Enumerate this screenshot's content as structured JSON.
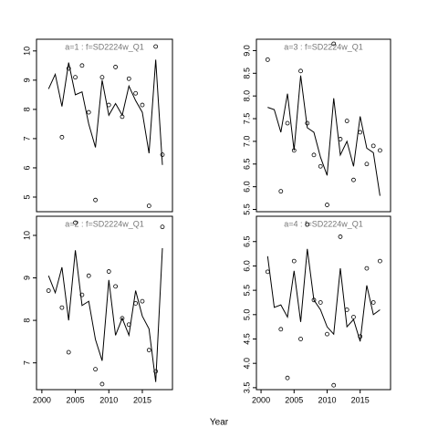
{
  "xlabel": "Year",
  "chart_data": [
    {
      "type": "line",
      "title": "a=1  :  f=SD2224w_Q1",
      "x": [
        2001,
        2002,
        2003,
        2004,
        2005,
        2006,
        2007,
        2008,
        2009,
        2010,
        2011,
        2012,
        2013,
        2014,
        2015,
        2016,
        2017,
        2018
      ],
      "xlim": [
        1999.2,
        2019.5
      ],
      "ylim": [
        4.5,
        10.4
      ],
      "yticks": [
        5,
        6,
        7,
        8,
        9,
        10
      ],
      "series": [
        {
          "style": "line",
          "color": "#000000",
          "values": [
            8.7,
            9.2,
            8.1,
            9.6,
            8.5,
            8.6,
            7.5,
            6.7,
            9.0,
            7.8,
            8.2,
            7.8,
            8.8,
            8.3,
            7.9,
            6.5,
            9.7,
            6.1
          ]
        },
        {
          "style": "points",
          "color": "#000000",
          "values": [
            null,
            null,
            7.05,
            9.4,
            9.1,
            9.5,
            7.9,
            4.9,
            9.1,
            8.15,
            9.45,
            7.75,
            9.05,
            8.55,
            8.15,
            4.7,
            10.15,
            6.45
          ]
        }
      ]
    },
    {
      "type": "line",
      "title": "a=3  :  f=SD2224w_Q1",
      "x": [
        2001,
        2002,
        2003,
        2004,
        2005,
        2006,
        2007,
        2008,
        2009,
        2010,
        2011,
        2012,
        2013,
        2014,
        2015,
        2016,
        2017,
        2018
      ],
      "xlim": [
        1999.3,
        2019.6
      ],
      "ylim": [
        5.45,
        9.25
      ],
      "yticks": [
        {
          "value": 5.5,
          "label": "5.5"
        },
        {
          "value": 6,
          "label": "6.0"
        },
        6.5,
        {
          "value": 7,
          "label": "7.0"
        },
        7.5,
        {
          "value": 8,
          "label": "8.0"
        },
        8.5,
        {
          "value": 9,
          "label": "9.0"
        }
      ],
      "series": [
        {
          "style": "line",
          "color": "#000000",
          "values": [
            7.75,
            7.7,
            7.2,
            8.05,
            6.8,
            8.45,
            7.3,
            7.2,
            6.65,
            6.25,
            7.95,
            6.7,
            7.0,
            6.45,
            7.55,
            6.85,
            6.75,
            5.8
          ]
        },
        {
          "style": "points",
          "color": "#000000",
          "values": [
            8.8,
            null,
            5.9,
            7.4,
            6.8,
            8.55,
            7.4,
            6.7,
            6.45,
            5.6,
            9.15,
            7.05,
            7.45,
            6.15,
            7.2,
            6.5,
            6.9,
            6.8
          ]
        }
      ]
    },
    {
      "type": "line",
      "title": "a=2  :  f=SD2224w_Q1",
      "x": [
        2001,
        2002,
        2003,
        2004,
        2005,
        2006,
        2007,
        2008,
        2009,
        2010,
        2011,
        2012,
        2013,
        2014,
        2015,
        2016,
        2017,
        2018
      ],
      "xlim": [
        1999.2,
        2019.5
      ],
      "xticks": [
        2000,
        2005,
        2010,
        2015
      ],
      "ylim": [
        6.37,
        10.45
      ],
      "yticks": [
        7,
        8,
        9,
        10
      ],
      "series": [
        {
          "style": "line",
          "color": "#000000",
          "values": [
            9.05,
            8.65,
            9.25,
            8.0,
            9.65,
            8.35,
            8.45,
            7.55,
            7.05,
            8.95,
            7.65,
            8.05,
            7.65,
            8.7,
            8.1,
            7.8,
            6.55,
            9.7
          ]
        },
        {
          "style": "points",
          "color": "#000000",
          "values": [
            8.7,
            null,
            8.3,
            7.25,
            10.3,
            8.6,
            9.05,
            6.85,
            6.5,
            9.15,
            8.8,
            8.05,
            7.9,
            8.4,
            8.45,
            7.3,
            6.8,
            10.2
          ]
        }
      ]
    },
    {
      "type": "line",
      "title": "a=4  :  f=SD2224w_Q1",
      "x": [
        2001,
        2002,
        2003,
        2004,
        2005,
        2006,
        2007,
        2008,
        2009,
        2010,
        2011,
        2012,
        2013,
        2014,
        2015,
        2016,
        2017,
        2018
      ],
      "xlim": [
        1999.3,
        2019.6
      ],
      "xticks": [
        2000,
        2005,
        2010,
        2015
      ],
      "ylim": [
        3.46,
        7.02
      ],
      "yticks": [
        3.5,
        {
          "value": 4,
          "label": "4.0"
        },
        4.5,
        {
          "value": 5,
          "label": "5.0"
        },
        5.5,
        {
          "value": 6,
          "label": "6.0"
        },
        6.5
      ],
      "series": [
        {
          "style": "line",
          "color": "#000000",
          "values": [
            6.2,
            5.15,
            5.2,
            4.95,
            5.9,
            4.85,
            6.35,
            5.3,
            5.1,
            4.75,
            4.6,
            5.95,
            4.75,
            4.9,
            4.45,
            5.6,
            5.0,
            5.1
          ]
        },
        {
          "style": "points",
          "color": "#000000",
          "values": [
            5.88,
            null,
            4.7,
            3.7,
            6.1,
            4.5,
            6.85,
            5.3,
            5.25,
            4.6,
            3.55,
            6.6,
            5.1,
            4.95,
            4.55,
            5.95,
            5.25,
            6.1
          ]
        }
      ]
    }
  ]
}
